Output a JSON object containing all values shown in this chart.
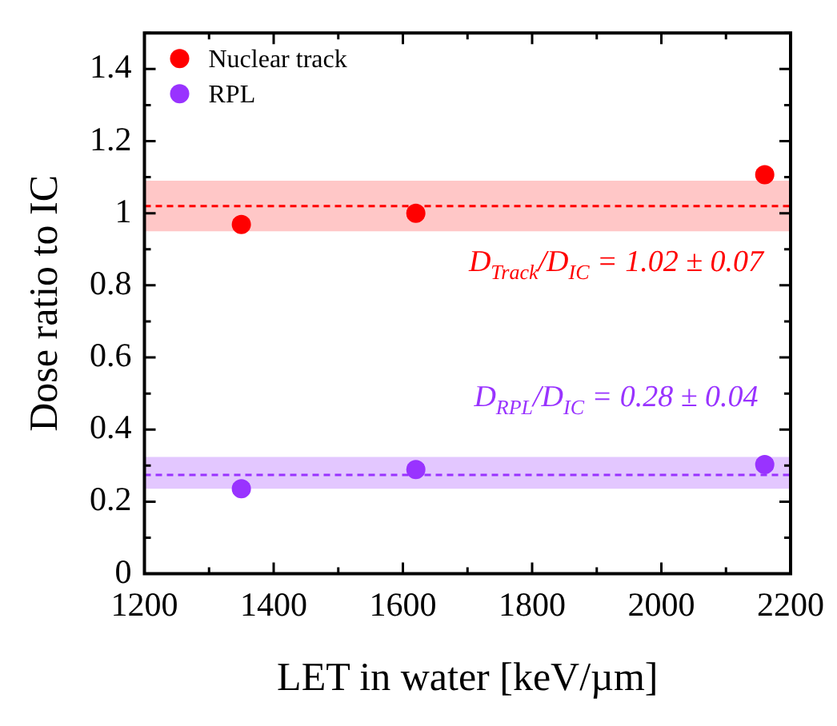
{
  "chart_data": {
    "type": "scatter",
    "xlabel": "LET in water [keV/µm]",
    "ylabel": "Dose ratio to IC",
    "x": [
      1350,
      1620,
      2160
    ],
    "series": [
      {
        "name": "Nuclear track",
        "color": "#ff0000",
        "values": [
          0.969,
          1.0,
          1.107
        ],
        "errors": [
          0.012,
          0.012,
          0.012
        ]
      },
      {
        "name": "RPL",
        "color": "#9933ff",
        "values": [
          0.236,
          0.289,
          0.303
        ],
        "errors": [
          0.012,
          0.012,
          0.012
        ]
      }
    ],
    "xlim": [
      1200,
      2200
    ],
    "xticks": [
      1200,
      1400,
      1600,
      1800,
      2000,
      2200
    ],
    "ylim": [
      0,
      1.5
    ],
    "yticks": [
      0,
      0.2,
      0.4,
      0.6,
      0.8,
      1,
      1.2,
      1.4
    ],
    "ref_lines": [
      {
        "axis": "y",
        "value": 1.02,
        "color": "#ff0000",
        "line_style": "dashed"
      },
      {
        "axis": "y",
        "value": 0.274,
        "color": "#9933ff",
        "line_style": "dashed"
      }
    ],
    "bands": [
      {
        "axis": "y",
        "from": 0.95,
        "to": 1.09,
        "color": "#ff9999"
      },
      {
        "axis": "y",
        "from": 0.236,
        "to": 0.324,
        "color": "#cc99ff"
      }
    ],
    "annotations": [
      "D$_{Track}$/D$_{IC}$ = 1.02 ± 0.07",
      "D$_{RPL}$/D$_{IC}$ = 0.28 ± 0.04"
    ],
    "legend": "top left",
    "marker": "circle",
    "grid": false
  }
}
